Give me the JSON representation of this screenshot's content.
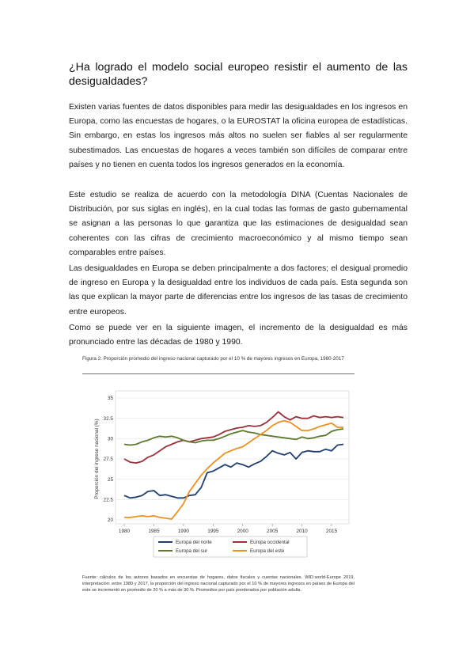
{
  "heading": "¿Ha logrado el modelo social europeo resistir el aumento de las desigualdades?",
  "paragraphs": [
    "Existen varias fuentes de datos disponibles para medir las desigualdades en los ingresos en Europa, como las encuestas de hogares, o la EUROSTAT la oficina europea de estadísticas. Sin embargo, en estas los ingresos más altos no suelen ser fiables al ser regularmente subestimados. Las encuestas de hogares a veces también son difíciles de comparar entre países y no tienen en cuenta todos los ingresos generados en la economía.",
    "Este estudio se realiza de acuerdo con la metodología DINA (Cuentas Nacionales de Distribución, por sus siglas en inglés), en la cual todas las formas de gasto gubernamental se asignan a las personas lo que garantiza que las estimaciones de desigualdad sean coherentes con las cifras de crecimiento macroeconómico y al mismo tiempo sean comparables entre países.",
    "Las desigualdades en Europa se deben principalmente a dos factores; el desigual promedio de ingreso en Europa y la desigualdad entre los individuos de cada país. Esta segunda son las que explican la mayor parte de diferencias entre los ingresos de las tasas de crecimiento entre europeos.",
    "Como se puede ver en la siguiente imagen, el incremento de la desigualdad es más pronunciado entre las décadas de 1980 y 1990."
  ],
  "figure": {
    "title": "Figura 2. Proporción promedio del ingreso nacional capturado por el 10 % de mayores ingresos en Europa, 1980-2017",
    "source": "Fuente: cálculos de los autores basados en encuestas de hogares, datos fiscales y cuentas nacionales. WID.world-Europe 2019, interpretación: entre 1980 y 2017, la proporción del ingreso nacional capturado por el 10 % de mayores ingresos en países de Europa del este se incrementó en promedio de 20 % a más de 30 %. Promedios por país ponderados por población adulta."
  },
  "chart_data": {
    "type": "line",
    "title": "",
    "xlabel": "",
    "ylabel": "Proporción del ingreso nacional (%)",
    "xlim": [
      1980,
      2017
    ],
    "ylim": [
      20,
      35
    ],
    "x_ticks": [
      "1980",
      "1985",
      "1990",
      "1995",
      "2000",
      "2005",
      "2010",
      "2015"
    ],
    "y_ticks": [
      "20",
      "22.5",
      "25",
      "27.5",
      "30",
      "32.5",
      "35"
    ],
    "grid": true,
    "legend_position": "bottom",
    "series": [
      {
        "name": "Europa del norte",
        "color": "#1f3f73",
        "x": [
          1980,
          1981,
          1982,
          1983,
          1984,
          1985,
          1986,
          1987,
          1988,
          1989,
          1990,
          1991,
          1992,
          1993,
          1994,
          1995,
          1996,
          1997,
          1998,
          1999,
          2000,
          2001,
          2002,
          2003,
          2004,
          2005,
          2006,
          2007,
          2008,
          2009,
          2010,
          2011,
          2012,
          2013,
          2014,
          2015,
          2016,
          2017
        ],
        "values": [
          23.0,
          22.7,
          22.8,
          23.0,
          23.5,
          23.6,
          23.0,
          23.1,
          22.9,
          22.7,
          22.7,
          23.0,
          23.1,
          24.0,
          25.8,
          26.0,
          26.4,
          26.8,
          26.5,
          27.0,
          26.8,
          26.5,
          26.9,
          27.2,
          27.8,
          28.5,
          28.2,
          28.0,
          28.3,
          27.5,
          28.3,
          28.5,
          28.4,
          28.4,
          28.7,
          28.5,
          29.2,
          29.3
        ]
      },
      {
        "name": "Europa occidental",
        "color": "#9c2f3a",
        "x": [
          1980,
          1981,
          1982,
          1983,
          1984,
          1985,
          1986,
          1987,
          1988,
          1989,
          1990,
          1991,
          1992,
          1993,
          1994,
          1995,
          1996,
          1997,
          1998,
          1999,
          2000,
          2001,
          2002,
          2003,
          2004,
          2005,
          2006,
          2007,
          2008,
          2009,
          2010,
          2011,
          2012,
          2013,
          2014,
          2015,
          2016,
          2017
        ],
        "values": [
          27.5,
          27.1,
          27.0,
          27.2,
          27.7,
          28.0,
          28.5,
          29.0,
          29.3,
          29.6,
          29.8,
          29.6,
          29.8,
          30.0,
          30.1,
          30.2,
          30.5,
          30.9,
          31.1,
          31.3,
          31.4,
          31.6,
          31.5,
          31.6,
          32.0,
          32.6,
          33.3,
          32.7,
          32.3,
          32.7,
          32.5,
          32.5,
          32.8,
          32.6,
          32.7,
          32.6,
          32.7,
          32.6
        ]
      },
      {
        "name": "Europa del sur",
        "color": "#5c7a2b",
        "x": [
          1980,
          1981,
          1982,
          1983,
          1984,
          1985,
          1986,
          1987,
          1988,
          1989,
          1990,
          1991,
          1992,
          1993,
          1994,
          1995,
          1996,
          1997,
          1998,
          1999,
          2000,
          2001,
          2002,
          2003,
          2004,
          2005,
          2006,
          2007,
          2008,
          2009,
          2010,
          2011,
          2012,
          2013,
          2014,
          2015,
          2016,
          2017
        ],
        "values": [
          29.3,
          29.2,
          29.3,
          29.6,
          29.8,
          30.1,
          30.3,
          30.2,
          30.3,
          30.1,
          29.8,
          29.6,
          29.5,
          29.7,
          29.8,
          29.8,
          30.0,
          30.3,
          30.6,
          30.8,
          31.0,
          30.8,
          30.7,
          30.5,
          30.4,
          30.3,
          30.2,
          30.1,
          30.0,
          29.9,
          30.2,
          30.0,
          30.1,
          30.3,
          30.4,
          30.9,
          31.1,
          31.2
        ]
      },
      {
        "name": "Europa del este",
        "color": "#f0901f",
        "x": [
          1980,
          1981,
          1982,
          1983,
          1984,
          1985,
          1986,
          1987,
          1988,
          1989,
          1990,
          1991,
          1992,
          1993,
          1994,
          1995,
          1996,
          1997,
          1998,
          1999,
          2000,
          2001,
          2002,
          2003,
          2004,
          2005,
          2006,
          2007,
          2008,
          2009,
          2010,
          2011,
          2012,
          2013,
          2014,
          2015,
          2016,
          2017
        ],
        "values": [
          20.3,
          20.3,
          20.4,
          20.5,
          20.4,
          20.5,
          20.3,
          20.2,
          20.1,
          21.0,
          22.0,
          23.5,
          24.5,
          25.5,
          26.3,
          27.0,
          27.6,
          28.2,
          28.5,
          28.8,
          29.0,
          29.5,
          30.0,
          30.5,
          31.0,
          31.6,
          32.0,
          32.2,
          32.0,
          31.5,
          31.0,
          31.0,
          31.2,
          31.5,
          31.7,
          31.9,
          31.4,
          31.4
        ]
      }
    ]
  }
}
